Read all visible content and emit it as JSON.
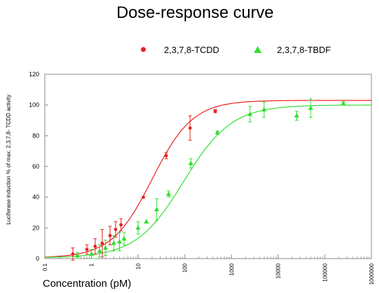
{
  "chart_data": {
    "type": "scatter",
    "title": "Dose-response curve",
    "xlabel": "Concentration  (pM)",
    "ylabel": "Luciferase induction % of max. 2,3,7,8- TCDD activity",
    "x_scale": "log",
    "xlim": [
      0.1,
      1000000
    ],
    "ylim": [
      0,
      120
    ],
    "x_ticks": [
      "0.1",
      "1",
      "10",
      "100",
      "1000",
      "10000",
      "100000",
      "1000000"
    ],
    "y_ticks": [
      "0",
      "20",
      "40",
      "60",
      "80",
      "100",
      "120"
    ],
    "grid": false,
    "legend_position": "top",
    "series": [
      {
        "name": "2,3,7,8-TCDD",
        "color": "#e8201e",
        "marker": "circle",
        "fit": {
          "bottom": 0.5,
          "top": 103,
          "ec50": 20,
          "hill": 1.0
        },
        "points": [
          {
            "x": 0.4,
            "y": 3,
            "err": 4
          },
          {
            "x": 0.8,
            "y": 6,
            "err": 3
          },
          {
            "x": 1.2,
            "y": 8,
            "err": 5
          },
          {
            "x": 1.7,
            "y": 10,
            "err": 9
          },
          {
            "x": 2.5,
            "y": 15,
            "err": 6
          },
          {
            "x": 3.3,
            "y": 19,
            "err": 5
          },
          {
            "x": 4.3,
            "y": 22,
            "err": 4
          },
          {
            "x": 13,
            "y": 40,
            "err": 0
          },
          {
            "x": 40,
            "y": 67,
            "err": 2
          },
          {
            "x": 130,
            "y": 85,
            "err": 8
          },
          {
            "x": 450,
            "y": 96,
            "err": 1
          }
        ]
      },
      {
        "name": "2,3,7,8-TBDF",
        "color": "#33dd33",
        "marker": "triangle",
        "fit": {
          "bottom": 0.5,
          "top": 100,
          "ec50": 95,
          "hill": 0.85
        },
        "points": [
          {
            "x": 0.5,
            "y": 2,
            "err": 2
          },
          {
            "x": 1.0,
            "y": 3,
            "err": 3
          },
          {
            "x": 1.5,
            "y": 5,
            "err": 4
          },
          {
            "x": 2.0,
            "y": 7,
            "err": 5
          },
          {
            "x": 3.0,
            "y": 10,
            "err": 5
          },
          {
            "x": 4.0,
            "y": 11,
            "err": 6
          },
          {
            "x": 5.0,
            "y": 13,
            "err": 4
          },
          {
            "x": 10,
            "y": 20,
            "err": 4
          },
          {
            "x": 15,
            "y": 24,
            "err": 0
          },
          {
            "x": 25,
            "y": 32,
            "err": 7
          },
          {
            "x": 45,
            "y": 42,
            "err": 2
          },
          {
            "x": 135,
            "y": 62,
            "err": 3
          },
          {
            "x": 500,
            "y": 82,
            "err": 1
          },
          {
            "x": 2500,
            "y": 94,
            "err": 5
          },
          {
            "x": 5000,
            "y": 97,
            "err": 5
          },
          {
            "x": 25000,
            "y": 93,
            "err": 3
          },
          {
            "x": 50000,
            "y": 98,
            "err": 6
          },
          {
            "x": 250000,
            "y": 101,
            "err": 1
          }
        ]
      }
    ]
  }
}
